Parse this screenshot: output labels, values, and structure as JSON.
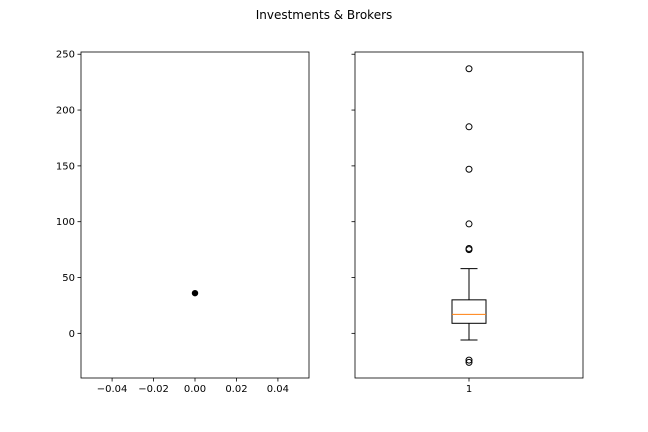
{
  "chart_data": {
    "title": "Investments & Brokers",
    "shared_y": {
      "ylim": [
        -40,
        252
      ],
      "yticks": [
        0,
        50,
        100,
        150,
        200,
        250
      ],
      "ytick_labels": [
        "0",
        "50",
        "100",
        "150",
        "200",
        "250"
      ]
    },
    "charts": [
      {
        "type": "scatter",
        "xlim": [
          -0.055,
          0.055
        ],
        "xticks": [
          -0.04,
          -0.02,
          0.0,
          0.02,
          0.04
        ],
        "xtick_labels": [
          "−0.04",
          "−0.02",
          "0.00",
          "0.02",
          "0.04"
        ],
        "points": [
          {
            "x": 0.0,
            "y": 36
          }
        ],
        "color": "#000000"
      },
      {
        "type": "boxplot",
        "xlim": [
          0.5,
          1.5
        ],
        "xticks": [
          1
        ],
        "xtick_labels": [
          "1"
        ],
        "box": {
          "position": 1,
          "whisker_low": -6,
          "q1": 9,
          "median": 17,
          "q3": 30,
          "whisker_high": 58
        },
        "outliers": [
          237,
          185,
          147,
          98,
          76,
          75,
          -24,
          -26
        ],
        "median_color": "#ff7f0e"
      }
    ]
  }
}
